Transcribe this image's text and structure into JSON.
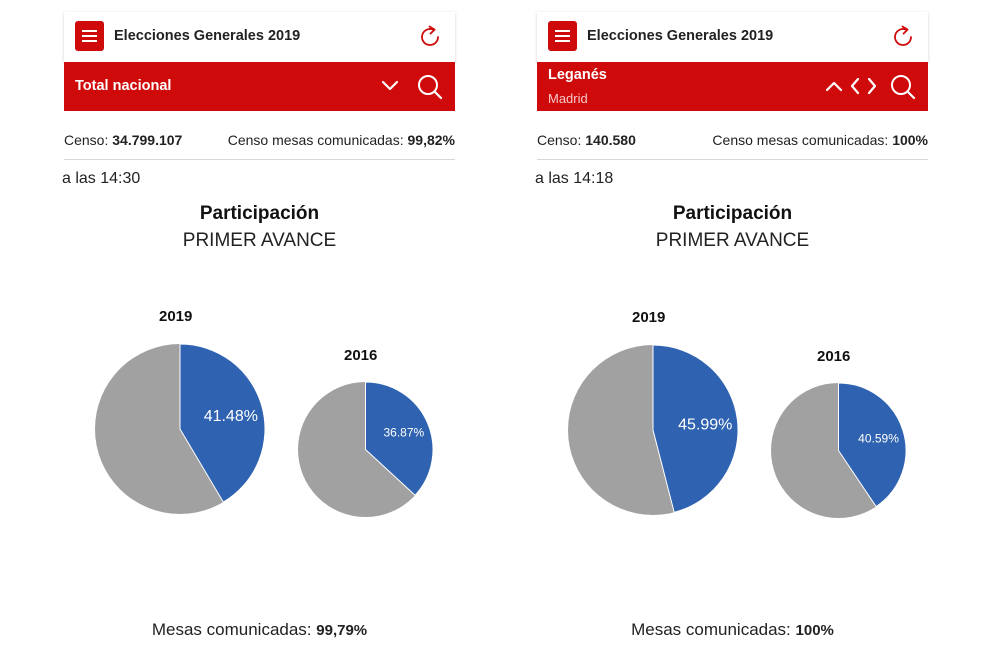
{
  "panels": [
    {
      "app_title": "Elecciones Generales 2019",
      "location": "Total nacional",
      "location_sub": "",
      "censo_label": "Censo:",
      "censo_value": "34.799.107",
      "censo_mesas_label": "Censo mesas comunicadas:",
      "censo_mesas_value": "99,82%",
      "time": "a las 14:30",
      "title": "Participación",
      "subtitle": "PRIMER AVANCE",
      "mesas_label": "Mesas comunicadas:",
      "mesas_value": "99,79%"
    },
    {
      "app_title": "Elecciones Generales 2019",
      "location": "Leganés",
      "location_sub": "Madrid",
      "censo_label": "Censo:",
      "censo_value": "140.580",
      "censo_mesas_label": "Censo mesas comunicadas:",
      "censo_mesas_value": "100%",
      "time": "a las 14:18",
      "title": "Participación",
      "subtitle": "PRIMER AVANCE",
      "mesas_label": "Mesas comunicadas:",
      "mesas_value": "100%"
    }
  ],
  "icons": {
    "menu": "menu-icon",
    "refresh": "refresh-icon",
    "chevron_down": "chevron-down-icon",
    "chevron_up": "chevron-up-icon",
    "chevron_left": "chevron-left-icon",
    "chevron_right": "chevron-right-icon",
    "search": "search-icon"
  },
  "colors": {
    "brand_red": "#cf0a0a",
    "participation": "#2f62b0",
    "remainder": "#a1a1a1"
  },
  "chart_data": [
    {
      "type": "pie",
      "panel": "Total nacional",
      "charts": [
        {
          "title": "2019",
          "value_pct": 41.48,
          "label": "41.48%"
        },
        {
          "title": "2016",
          "value_pct": 36.87,
          "label": "36.87%"
        }
      ]
    },
    {
      "type": "pie",
      "panel": "Leganés",
      "charts": [
        {
          "title": "2019",
          "value_pct": 45.99,
          "label": "45.99%"
        },
        {
          "title": "2016",
          "value_pct": 40.59,
          "label": "40.59%"
        }
      ]
    }
  ]
}
